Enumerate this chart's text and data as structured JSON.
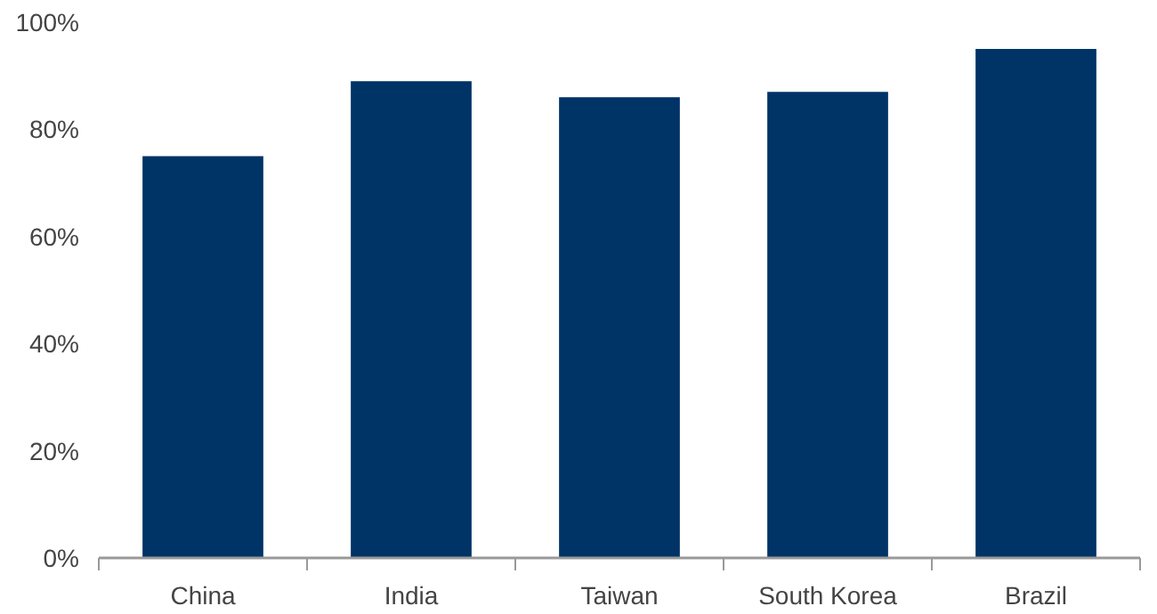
{
  "chart_data": {
    "type": "bar",
    "categories": [
      "China",
      "India",
      "Taiwan",
      "South Korea",
      "Brazil"
    ],
    "values": [
      75,
      89,
      86,
      87,
      95
    ],
    "color": "#003366",
    "ylim": [
      0,
      100
    ],
    "yticks": [
      {
        "value": 0,
        "label": "0%"
      },
      {
        "value": 20,
        "label": "20%"
      },
      {
        "value": 40,
        "label": "40%"
      },
      {
        "value": 60,
        "label": "60%"
      },
      {
        "value": 80,
        "label": "80%"
      },
      {
        "value": 100,
        "label": "100%"
      }
    ],
    "grid": false
  }
}
